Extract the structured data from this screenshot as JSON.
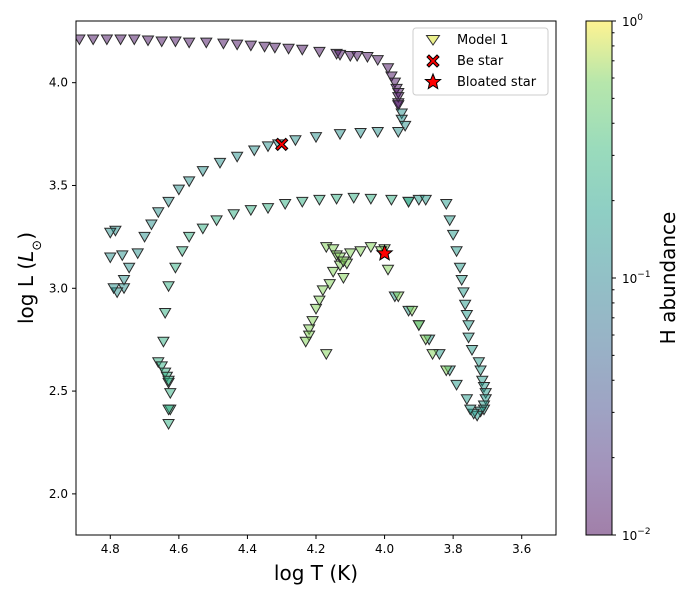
{
  "chart_data": {
    "type": "scatter",
    "xlabel": "log T (K)",
    "ylabel": "log L (L⊙)",
    "xlim": [
      4.9,
      3.5
    ],
    "ylim": [
      1.8,
      4.3
    ],
    "x_ticks": [
      "4.8",
      "4.6",
      "4.4",
      "4.2",
      "4.0",
      "3.8",
      "3.6"
    ],
    "x_tick_values": [
      4.8,
      4.6,
      4.4,
      4.2,
      4.0,
      3.8,
      3.6
    ],
    "y_ticks": [
      "2.0",
      "2.5",
      "3.0",
      "3.5",
      "4.0"
    ],
    "y_tick_values": [
      2.0,
      2.5,
      3.0,
      3.5,
      4.0
    ],
    "grid": false,
    "legend_position": "top-right",
    "legend": [
      "Model 1",
      "Be star",
      "Bloated star"
    ],
    "colorbar": {
      "label": "H abundance",
      "scale": "log",
      "range": [
        0.01,
        1.0
      ],
      "colormap": "viridis",
      "alpha": 0.5,
      "tick_labels": [
        "10^0",
        "10^-1",
        "10^-2"
      ],
      "tick_values": [
        1.0,
        0.1,
        0.01
      ]
    },
    "series": [
      {
        "name": "Model 1",
        "marker": "triangle_down",
        "tracks": [
          {
            "h_abundance": 0.012,
            "points": [
              [
                4.92,
                4.22
              ],
              [
                4.89,
                4.21
              ],
              [
                4.85,
                4.21
              ],
              [
                4.81,
                4.21
              ],
              [
                4.77,
                4.21
              ],
              [
                4.73,
                4.21
              ],
              [
                4.69,
                4.205
              ],
              [
                4.65,
                4.2
              ],
              [
                4.61,
                4.2
              ],
              [
                4.57,
                4.195
              ],
              [
                4.52,
                4.195
              ],
              [
                4.47,
                4.19
              ],
              [
                4.43,
                4.185
              ],
              [
                4.39,
                4.18
              ],
              [
                4.35,
                4.175
              ],
              [
                4.32,
                4.17
              ],
              [
                4.28,
                4.165
              ],
              [
                4.24,
                4.16
              ],
              [
                4.19,
                4.15
              ],
              [
                4.14,
                4.14
              ],
              [
                4.13,
                4.135
              ],
              [
                4.1,
                4.13
              ],
              [
                4.08,
                4.13
              ],
              [
                4.05,
                4.125
              ],
              [
                4.02,
                4.11
              ],
              [
                3.99,
                4.07
              ],
              [
                3.98,
                4.03
              ],
              [
                3.97,
                4.0
              ],
              [
                3.965,
                3.97
              ],
              [
                3.96,
                3.95
              ],
              [
                3.96,
                3.93
              ],
              [
                3.96,
                3.9
              ],
              [
                3.96,
                3.89
              ]
            ]
          },
          {
            "h_abundance": 0.13,
            "points": [
              [
                3.95,
                3.85
              ],
              [
                3.95,
                3.82
              ],
              [
                3.94,
                3.79
              ],
              [
                3.96,
                3.76
              ],
              [
                4.02,
                3.76
              ],
              [
                4.07,
                3.755
              ],
              [
                4.13,
                3.75
              ],
              [
                4.2,
                3.735
              ],
              [
                4.26,
                3.72
              ],
              [
                4.31,
                3.7
              ],
              [
                4.34,
                3.69
              ],
              [
                4.38,
                3.67
              ],
              [
                4.43,
                3.64
              ],
              [
                4.48,
                3.61
              ],
              [
                4.53,
                3.57
              ],
              [
                4.57,
                3.52
              ],
              [
                4.6,
                3.48
              ],
              [
                4.63,
                3.42
              ],
              [
                4.66,
                3.37
              ],
              [
                4.68,
                3.31
              ],
              [
                4.7,
                3.25
              ],
              [
                4.72,
                3.17
              ],
              [
                4.745,
                3.1
              ],
              [
                4.76,
                3.04
              ],
              [
                4.76,
                3.0
              ],
              [
                4.78,
                2.98
              ],
              [
                4.79,
                3.0
              ],
              [
                4.765,
                3.16
              ],
              [
                4.8,
                3.15
              ],
              [
                4.785,
                3.28
              ],
              [
                4.8,
                3.27
              ]
            ]
          },
          {
            "h_abundance": 0.16,
            "points": [
              [
                3.93,
                3.42
              ],
              [
                3.9,
                3.43
              ],
              [
                3.88,
                3.43
              ],
              [
                3.82,
                3.41
              ],
              [
                3.81,
                3.33
              ],
              [
                3.8,
                3.26
              ],
              [
                3.79,
                3.18
              ],
              [
                3.78,
                3.1
              ],
              [
                3.775,
                3.04
              ],
              [
                3.77,
                2.98
              ],
              [
                3.765,
                2.92
              ],
              [
                3.76,
                2.87
              ],
              [
                3.755,
                2.82
              ],
              [
                3.755,
                2.76
              ],
              [
                3.745,
                2.7
              ],
              [
                3.725,
                2.64
              ],
              [
                3.72,
                2.6
              ],
              [
                3.715,
                2.55
              ],
              [
                3.71,
                2.52
              ],
              [
                3.705,
                2.49
              ],
              [
                3.705,
                2.46
              ],
              [
                3.71,
                2.43
              ],
              [
                3.71,
                2.41
              ],
              [
                3.72,
                2.4
              ],
              [
                3.73,
                2.38
              ],
              [
                3.74,
                2.39
              ],
              [
                3.75,
                2.41
              ],
              [
                3.76,
                2.46
              ],
              [
                3.79,
                2.53
              ],
              [
                3.81,
                2.6
              ],
              [
                3.84,
                2.68
              ],
              [
                3.87,
                2.75
              ],
              [
                3.9,
                2.82
              ],
              [
                3.93,
                2.89
              ],
              [
                3.97,
                2.96
              ]
            ]
          },
          {
            "h_abundance": 0.25,
            "points": [
              [
                3.93,
                3.42
              ],
              [
                3.98,
                3.43
              ],
              [
                4.04,
                3.435
              ],
              [
                4.09,
                3.44
              ],
              [
                4.14,
                3.435
              ],
              [
                4.19,
                3.43
              ],
              [
                4.24,
                3.42
              ],
              [
                4.29,
                3.41
              ],
              [
                4.34,
                3.39
              ],
              [
                4.39,
                3.38
              ],
              [
                4.44,
                3.36
              ],
              [
                4.49,
                3.33
              ],
              [
                4.53,
                3.29
              ],
              [
                4.57,
                3.25
              ],
              [
                4.59,
                3.18
              ],
              [
                4.61,
                3.1
              ],
              [
                4.63,
                3.01
              ],
              [
                4.64,
                2.88
              ],
              [
                4.645,
                2.74
              ],
              [
                4.66,
                2.64
              ],
              [
                4.65,
                2.62
              ],
              [
                4.64,
                2.59
              ],
              [
                4.635,
                2.57
              ],
              [
                4.63,
                2.54
              ],
              [
                4.63,
                2.55
              ],
              [
                4.625,
                2.49
              ],
              [
                4.625,
                2.41
              ],
              [
                4.63,
                2.41
              ],
              [
                4.63,
                2.34
              ]
            ]
          },
          {
            "h_abundance": 0.6,
            "points": [
              [
                4.04,
                3.2
              ],
              [
                4.07,
                3.18
              ],
              [
                4.1,
                3.17
              ],
              [
                4.11,
                3.12
              ],
              [
                4.13,
                3.11
              ],
              [
                4.15,
                3.08
              ],
              [
                4.12,
                3.05
              ],
              [
                4.16,
                3.02
              ],
              [
                4.18,
                2.99
              ],
              [
                4.19,
                2.94
              ],
              [
                4.2,
                2.9
              ],
              [
                4.21,
                2.84
              ],
              [
                4.22,
                2.8
              ],
              [
                4.22,
                2.77
              ],
              [
                4.23,
                2.74
              ],
              [
                4.17,
                2.68
              ],
              [
                4.17,
                3.2
              ],
              [
                4.15,
                3.19
              ],
              [
                4.14,
                3.16
              ],
              [
                4.13,
                3.15
              ],
              [
                4.12,
                3.13
              ],
              [
                4.0,
                3.19
              ],
              [
                4.01,
                3.18
              ],
              [
                3.99,
                3.09
              ],
              [
                3.96,
                2.96
              ],
              [
                3.92,
                2.89
              ],
              [
                3.9,
                2.82
              ],
              [
                3.88,
                2.75
              ],
              [
                3.86,
                2.68
              ],
              [
                3.82,
                2.6
              ]
            ]
          }
        ]
      },
      {
        "name": "Be star",
        "marker": "X",
        "color": "#ff0000",
        "x": 4.3,
        "y": 3.7
      },
      {
        "name": "Bloated star",
        "marker": "star",
        "color": "#ff0000",
        "x": 4.0,
        "y": 3.17
      }
    ]
  }
}
